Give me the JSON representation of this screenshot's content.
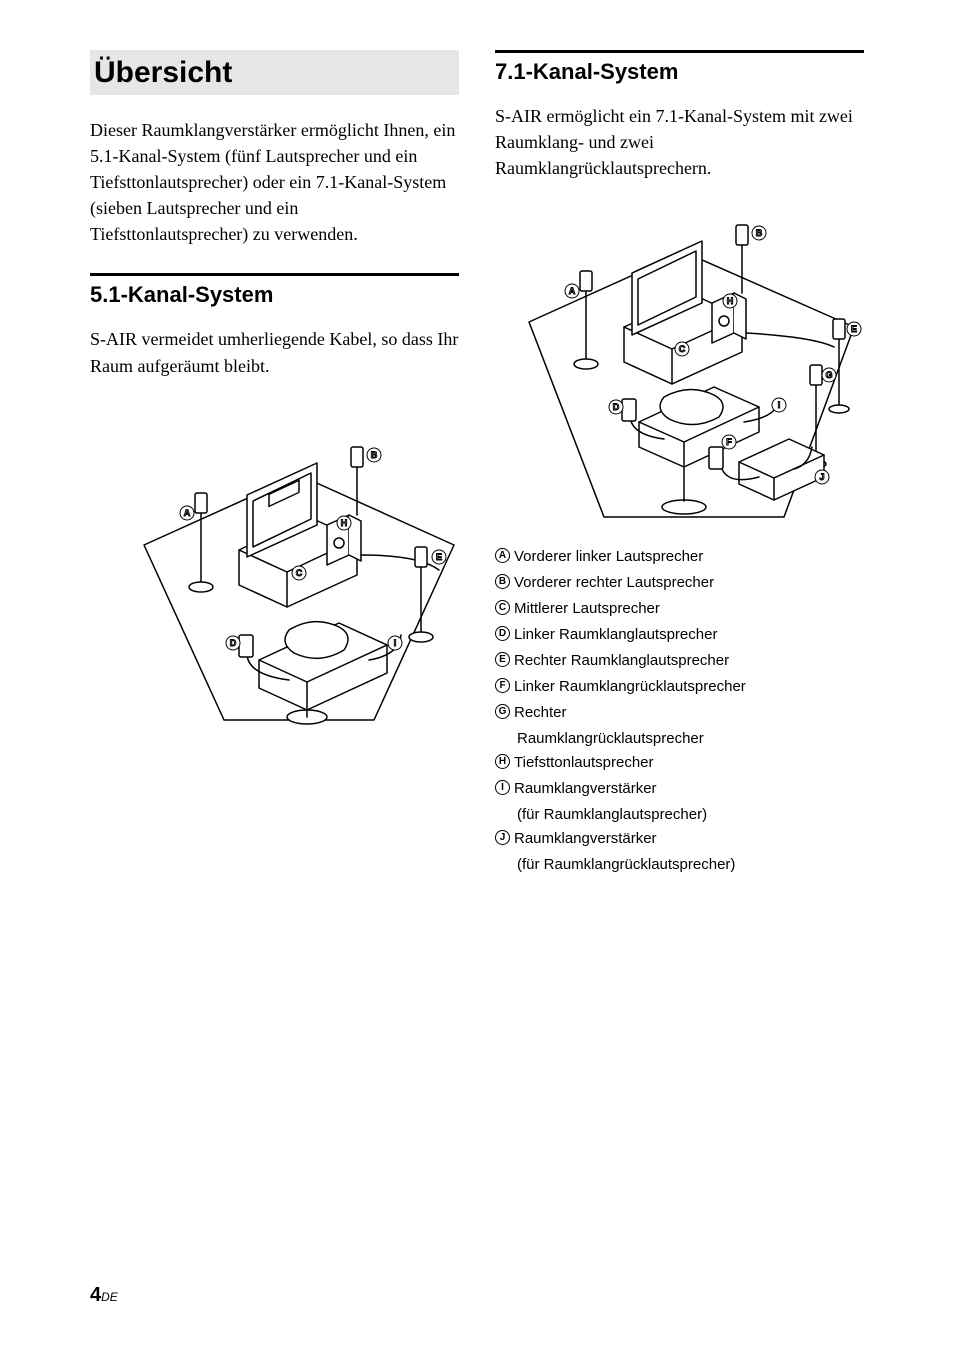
{
  "page": {
    "number": "4",
    "lang": "DE"
  },
  "left": {
    "main_title": "Übersicht",
    "intro": "Dieser Raumklangverstärker ermöglicht Ihnen, ein 5.1-Kanal-System (fünf Lautsprecher und ein Tiefsttonlautsprecher) oder ein 7.1-Kanal-System (sieben Lautsprecher und ein Tiefsttonlautsprecher) zu verwenden.",
    "section_title": "5.1-Kanal-System",
    "section_body": "S-AIR vermeidet umherliegende Kabel, so dass Ihr Raum aufgeräumt bleibt.",
    "callouts": {
      "A": "A",
      "B": "B",
      "C": "C",
      "D": "D",
      "E": "E",
      "H": "H",
      "I": "I"
    }
  },
  "right": {
    "section_title": "7.1-Kanal-System",
    "section_body": "S-AIR ermöglicht ein 7.1-Kanal-System mit zwei Raumklang- und zwei Raumklangrücklautsprechern.",
    "callouts": {
      "A": "A",
      "B": "B",
      "C": "C",
      "D": "D",
      "E": "E",
      "F": "F",
      "G": "G",
      "H": "H",
      "I": "I",
      "J": "J"
    },
    "legend": [
      {
        "letter": "A",
        "text": "Vorderer linker Lautsprecher"
      },
      {
        "letter": "B",
        "text": "Vorderer rechter Lautsprecher"
      },
      {
        "letter": "C",
        "text": "Mittlerer Lautsprecher"
      },
      {
        "letter": "D",
        "text": "Linker Raumklanglautsprecher"
      },
      {
        "letter": "E",
        "text": "Rechter Raumklanglautsprecher"
      },
      {
        "letter": "F",
        "text": "Linker Raumklangrücklautsprecher"
      },
      {
        "letter": "G",
        "text": "Rechter Raumklangrücklautsprecher",
        "multiline": true
      },
      {
        "letter": "H",
        "text": "Tiefsttonlautsprecher"
      },
      {
        "letter": "I",
        "text": "Raumklangverstärker",
        "sub": "(für Raumklanglautsprecher)"
      },
      {
        "letter": "J",
        "text": "Raumklangverstärker",
        "sub": "(für Raumklangrücklautsprecher)"
      }
    ]
  },
  "style": {
    "bg": "#ffffff",
    "title_bg": "#e6e6e6",
    "rule_color": "#000000",
    "text_color": "#000000",
    "diagram_stroke": "#000000",
    "diagram_fill": "#ffffff"
  }
}
